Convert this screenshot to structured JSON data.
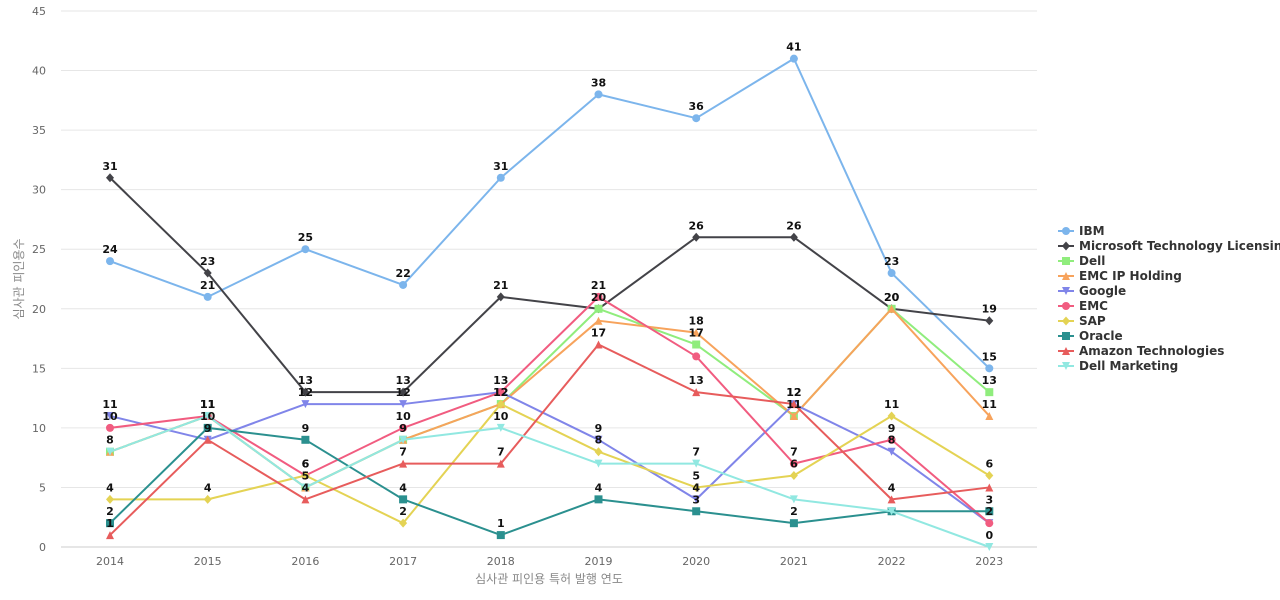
{
  "chart_data": {
    "type": "line",
    "title": "",
    "xlabel": "심사관 피인용 특허 발행 연도",
    "ylabel": "심사관 피인용수",
    "x": [
      "2014",
      "2015",
      "2016",
      "2017",
      "2018",
      "2019",
      "2020",
      "2021",
      "2022",
      "2023"
    ],
    "ylim": [
      0,
      45
    ],
    "yticks": [
      0,
      5,
      10,
      15,
      20,
      25,
      30,
      35,
      40,
      45
    ],
    "grid": "horizontal",
    "legend_position": "right",
    "series": [
      {
        "name": "IBM",
        "color": "#7cb5ec",
        "marker": "circle",
        "values": [
          24,
          21,
          25,
          22,
          31,
          38,
          36,
          41,
          23,
          15
        ]
      },
      {
        "name": "Microsoft Technology Licensing",
        "color": "#434348",
        "marker": "diamond",
        "values": [
          31,
          23,
          13,
          13,
          21,
          20,
          26,
          26,
          20,
          19
        ]
      },
      {
        "name": "Dell",
        "color": "#90ed7d",
        "marker": "square",
        "values": [
          8,
          11,
          5,
          9,
          12,
          20,
          17,
          11,
          20,
          13
        ]
      },
      {
        "name": "EMC IP Holding",
        "color": "#f7a35c",
        "marker": "triangle",
        "values": [
          8,
          11,
          5,
          9,
          12,
          19,
          18,
          11,
          20,
          11
        ]
      },
      {
        "name": "Google",
        "color": "#8085e9",
        "marker": "triangle-down",
        "values": [
          11,
          9,
          12,
          12,
          13,
          9,
          4,
          12,
          8,
          2
        ]
      },
      {
        "name": "EMC",
        "color": "#f15c80",
        "marker": "circle",
        "values": [
          10,
          11,
          6,
          10,
          13,
          21,
          16,
          7,
          9,
          2
        ]
      },
      {
        "name": "SAP",
        "color": "#e4d354",
        "marker": "diamond",
        "values": [
          4,
          4,
          6,
          2,
          12,
          8,
          5,
          6,
          11,
          6
        ]
      },
      {
        "name": "Oracle",
        "color": "#2b908f",
        "marker": "square",
        "values": [
          2,
          10,
          9,
          4,
          1,
          4,
          3,
          2,
          3,
          3
        ]
      },
      {
        "name": "Amazon Technologies",
        "color": "#e75c5c",
        "marker": "triangle",
        "values": [
          1,
          9,
          4,
          7,
          7,
          17,
          13,
          12,
          4,
          5
        ]
      },
      {
        "name": "Dell Marketing",
        "color": "#91e8e1",
        "marker": "triangle-down",
        "values": [
          8,
          11,
          5,
          9,
          10,
          7,
          7,
          4,
          3,
          0
        ]
      }
    ],
    "data_labels": [
      {
        "series": 0,
        "show": [
          1,
          1,
          1,
          1,
          1,
          1,
          1,
          1,
          1,
          1
        ]
      },
      {
        "series": 1,
        "show": [
          1,
          1,
          1,
          1,
          1,
          0,
          1,
          1,
          1,
          1
        ]
      },
      {
        "series": 2,
        "show": [
          0,
          0,
          0,
          0,
          0,
          1,
          1,
          0,
          0,
          1
        ]
      },
      {
        "series": 3,
        "show": [
          1,
          1,
          1,
          1,
          1,
          0,
          1,
          1,
          1,
          1
        ]
      },
      {
        "series": 4,
        "show": [
          1,
          1,
          1,
          1,
          0,
          1,
          1,
          1,
          1,
          0
        ]
      },
      {
        "series": 5,
        "show": [
          1,
          1,
          1,
          1,
          1,
          1,
          0,
          1,
          1,
          1
        ]
      },
      {
        "series": 6,
        "show": [
          1,
          1,
          1,
          1,
          1,
          1,
          1,
          1,
          1,
          1
        ]
      },
      {
        "series": 7,
        "show": [
          1,
          1,
          1,
          1,
          1,
          1,
          1,
          1,
          0,
          1
        ]
      },
      {
        "series": 8,
        "show": [
          1,
          0,
          1,
          1,
          1,
          1,
          1,
          1,
          1,
          0
        ]
      },
      {
        "series": 9,
        "show": [
          0,
          1,
          0,
          0,
          1,
          0,
          1,
          0,
          0,
          1
        ]
      }
    ]
  }
}
